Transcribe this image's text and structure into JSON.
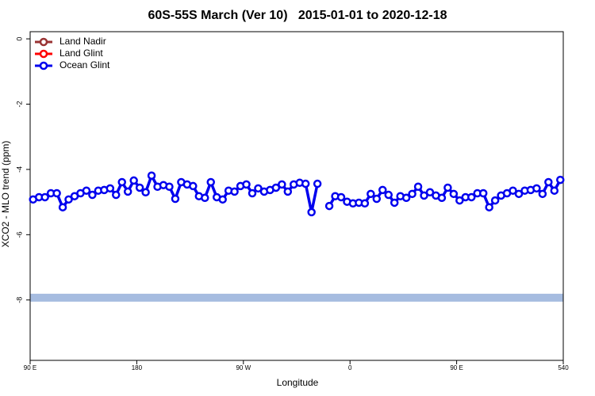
{
  "chart_data": {
    "type": "line",
    "title": "60S-55S March (Ver 10)   2015-01-01 to 2020-12-18",
    "x_label": "Longitude",
    "y_label": "XCO2 - MLO trend (ppm)",
    "xlim": [
      90,
      540
    ],
    "ylim": [
      -9.85,
      0.22
    ],
    "xticks": [
      {
        "value": 90,
        "label": "90 E"
      },
      180,
      {
        "value": 270,
        "label": "90 W"
      },
      {
        "value": 360,
        "label": "0"
      },
      {
        "value": 450,
        "label": "90 E"
      },
      540
    ],
    "yticks": [
      0,
      -2,
      -4,
      -6,
      -8
    ],
    "legend": "top-left",
    "hline": {
      "value": -7.93,
      "color": "#a6bce0"
    },
    "x": [
      92.5,
      97.5,
      102.5,
      107.5,
      112.5,
      117.5,
      122.5,
      127.5,
      132.5,
      137.5,
      142.5,
      147.5,
      152.5,
      157.5,
      162.5,
      167.5,
      172.5,
      177.5,
      182.5,
      187.5,
      192.5,
      197.5,
      202.5,
      207.5,
      212.5,
      217.5,
      222.5,
      227.5,
      232.5,
      237.5,
      242.5,
      247.5,
      252.5,
      257.5,
      262.5,
      267.5,
      272.5,
      277.5,
      282.5,
      287.5,
      292.5,
      297.5,
      302.5,
      307.5,
      312.5,
      317.5,
      322.5,
      327.5,
      332.5,
      337.5,
      342.5,
      347.5,
      352.5,
      357.5,
      362.5,
      367.5,
      372.5,
      377.5,
      382.5,
      387.5,
      392.5,
      397.5,
      402.5,
      407.5,
      412.5,
      417.5,
      422.5,
      427.5,
      432.5,
      437.5,
      442.5,
      447.5,
      452.5,
      457.5,
      462.5,
      467.5,
      472.5,
      477.5,
      482.5,
      487.5,
      492.5,
      497.5,
      502.5,
      507.5,
      512.5,
      517.5,
      522.5,
      527.5,
      532.5,
      537.5
    ],
    "series": [
      {
        "name": "Land Nadir",
        "color": "#993333"
      },
      {
        "name": "Land Glint",
        "color": "#ff0000"
      },
      {
        "name": "Ocean Glint",
        "color": "#0000ee",
        "values": [
          -4.92,
          -4.85,
          -4.85,
          -4.73,
          -4.73,
          -5.16,
          -4.92,
          -4.82,
          -4.73,
          -4.65,
          -4.78,
          -4.65,
          -4.63,
          -4.58,
          -4.78,
          -4.39,
          -4.68,
          -4.34,
          -4.56,
          -4.7,
          -4.19,
          -4.53,
          -4.48,
          -4.53,
          -4.9,
          -4.39,
          -4.46,
          -4.51,
          -4.82,
          -4.87,
          -4.39,
          -4.85,
          -4.92,
          -4.65,
          -4.68,
          -4.51,
          -4.46,
          -4.73,
          -4.58,
          -4.68,
          -4.63,
          -4.56,
          -4.46,
          -4.68,
          -4.46,
          -4.41,
          -4.44,
          -5.31,
          -4.44,
          null,
          -5.12,
          -4.82,
          -4.85,
          -4.99,
          -5.04,
          -5.02,
          -5.04,
          -4.75,
          -4.9,
          -4.63,
          -4.78,
          -5.02,
          -4.82,
          -4.87,
          -4.75,
          -4.53,
          -4.8,
          -4.7,
          -4.8,
          -4.87,
          -4.56,
          -4.75,
          -4.95,
          -4.85,
          -4.85,
          -4.73,
          -4.73,
          -5.16,
          -4.95,
          -4.8,
          -4.73,
          -4.65,
          -4.75,
          -4.65,
          -4.63,
          -4.58,
          -4.75,
          -4.39,
          -4.65,
          -4.32
        ]
      }
    ]
  }
}
